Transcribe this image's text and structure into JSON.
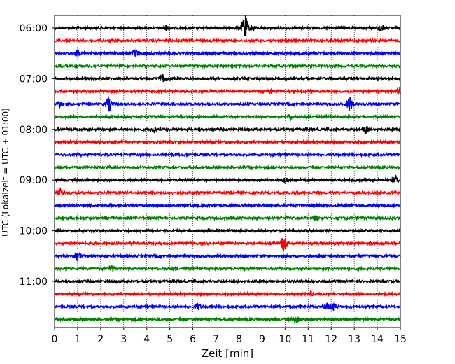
{
  "chart_data": {
    "type": "line",
    "xlabel": "Zeit  [min]",
    "ylabel": "UTC (Lokalzeit = UTC + 01:00)",
    "xlim": [
      0,
      15
    ],
    "x_ticks": [
      0,
      1,
      2,
      3,
      4,
      5,
      6,
      7,
      8,
      9,
      10,
      11,
      12,
      13,
      14,
      15
    ],
    "y_tick_labels": [
      "06:00",
      "07:00",
      "08:00",
      "09:00",
      "10:00",
      "11:00"
    ],
    "grid": "vertical dotted at each minute",
    "row_interval_minutes": 15,
    "row_start": "06:00",
    "rows": [
      {
        "start": "06:00",
        "color": "#000000",
        "bursts": [
          [
            4.8,
            0.6
          ],
          [
            8.25,
            3.0
          ],
          [
            8.6,
            0.8
          ],
          [
            14.2,
            0.7
          ]
        ]
      },
      {
        "start": "06:15",
        "color": "#ff0000",
        "bursts": []
      },
      {
        "start": "06:30",
        "color": "#0000ff",
        "bursts": [
          [
            1.0,
            0.7
          ],
          [
            3.5,
            0.9
          ]
        ]
      },
      {
        "start": "06:45",
        "color": "#008000",
        "bursts": []
      },
      {
        "start": "07:00",
        "color": "#000000",
        "bursts": [
          [
            4.7,
            0.8
          ]
        ]
      },
      {
        "start": "07:15",
        "color": "#ff0000",
        "bursts": [
          [
            9.4,
            0.5
          ],
          [
            15.0,
            1.0
          ]
        ]
      },
      {
        "start": "07:30",
        "color": "#0000ff",
        "bursts": [
          [
            0.2,
            0.8
          ],
          [
            2.35,
            1.6
          ],
          [
            12.8,
            1.6
          ]
        ]
      },
      {
        "start": "07:45",
        "color": "#008000",
        "bursts": [
          [
            10.2,
            0.5
          ]
        ]
      },
      {
        "start": "08:00",
        "color": "#000000",
        "bursts": [
          [
            4.3,
            0.7
          ],
          [
            13.5,
            0.8
          ]
        ]
      },
      {
        "start": "08:15",
        "color": "#ff0000",
        "bursts": []
      },
      {
        "start": "08:30",
        "color": "#0000ff",
        "bursts": []
      },
      {
        "start": "08:45",
        "color": "#008000",
        "bursts": []
      },
      {
        "start": "09:00",
        "color": "#000000",
        "bursts": [
          [
            10.0,
            0.6
          ],
          [
            14.8,
            0.9
          ]
        ]
      },
      {
        "start": "09:15",
        "color": "#ff0000",
        "bursts": [
          [
            0.25,
            0.8
          ]
        ]
      },
      {
        "start": "09:30",
        "color": "#0000ff",
        "bursts": []
      },
      {
        "start": "09:45",
        "color": "#008000",
        "bursts": [
          [
            11.3,
            0.5
          ]
        ]
      },
      {
        "start": "10:00",
        "color": "#000000",
        "bursts": []
      },
      {
        "start": "10:15",
        "color": "#ff0000",
        "bursts": [
          [
            9.95,
            1.8
          ]
        ]
      },
      {
        "start": "10:30",
        "color": "#0000ff",
        "bursts": [
          [
            1.0,
            0.9
          ]
        ]
      },
      {
        "start": "10:45",
        "color": "#008000",
        "bursts": [
          [
            2.45,
            0.7
          ]
        ]
      },
      {
        "start": "11:00",
        "color": "#000000",
        "bursts": []
      },
      {
        "start": "11:15",
        "color": "#ff0000",
        "bursts": [
          [
            11.1,
            0.5
          ]
        ]
      },
      {
        "start": "11:30",
        "color": "#0000ff",
        "bursts": [
          [
            6.2,
            0.7
          ],
          [
            11.8,
            0.7
          ],
          [
            12.1,
            0.8
          ]
        ]
      },
      {
        "start": "11:45",
        "color": "#008000",
        "bursts": [
          [
            10.5,
            0.8
          ]
        ]
      }
    ]
  }
}
